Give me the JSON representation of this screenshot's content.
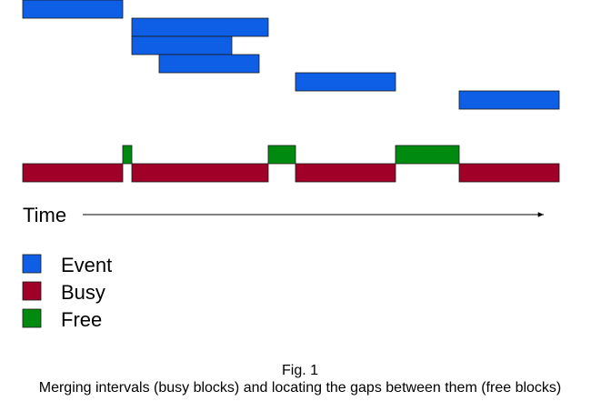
{
  "axis": {
    "label": "Time"
  },
  "legend": {
    "items": [
      {
        "key": "event",
        "label": "Event",
        "color": "#0f5fe6"
      },
      {
        "key": "busy",
        "label": "Busy",
        "color": "#a00028"
      },
      {
        "key": "free",
        "label": "Free",
        "color": "#008a10"
      }
    ]
  },
  "caption": {
    "title": "Fig. 1",
    "text": "Merging intervals (busy blocks) and locating the gaps between them (free blocks)"
  },
  "colors": {
    "event": "#0f5fe6",
    "busy": "#a00028",
    "free": "#008a10",
    "stroke": "#1a1a1a"
  }
}
